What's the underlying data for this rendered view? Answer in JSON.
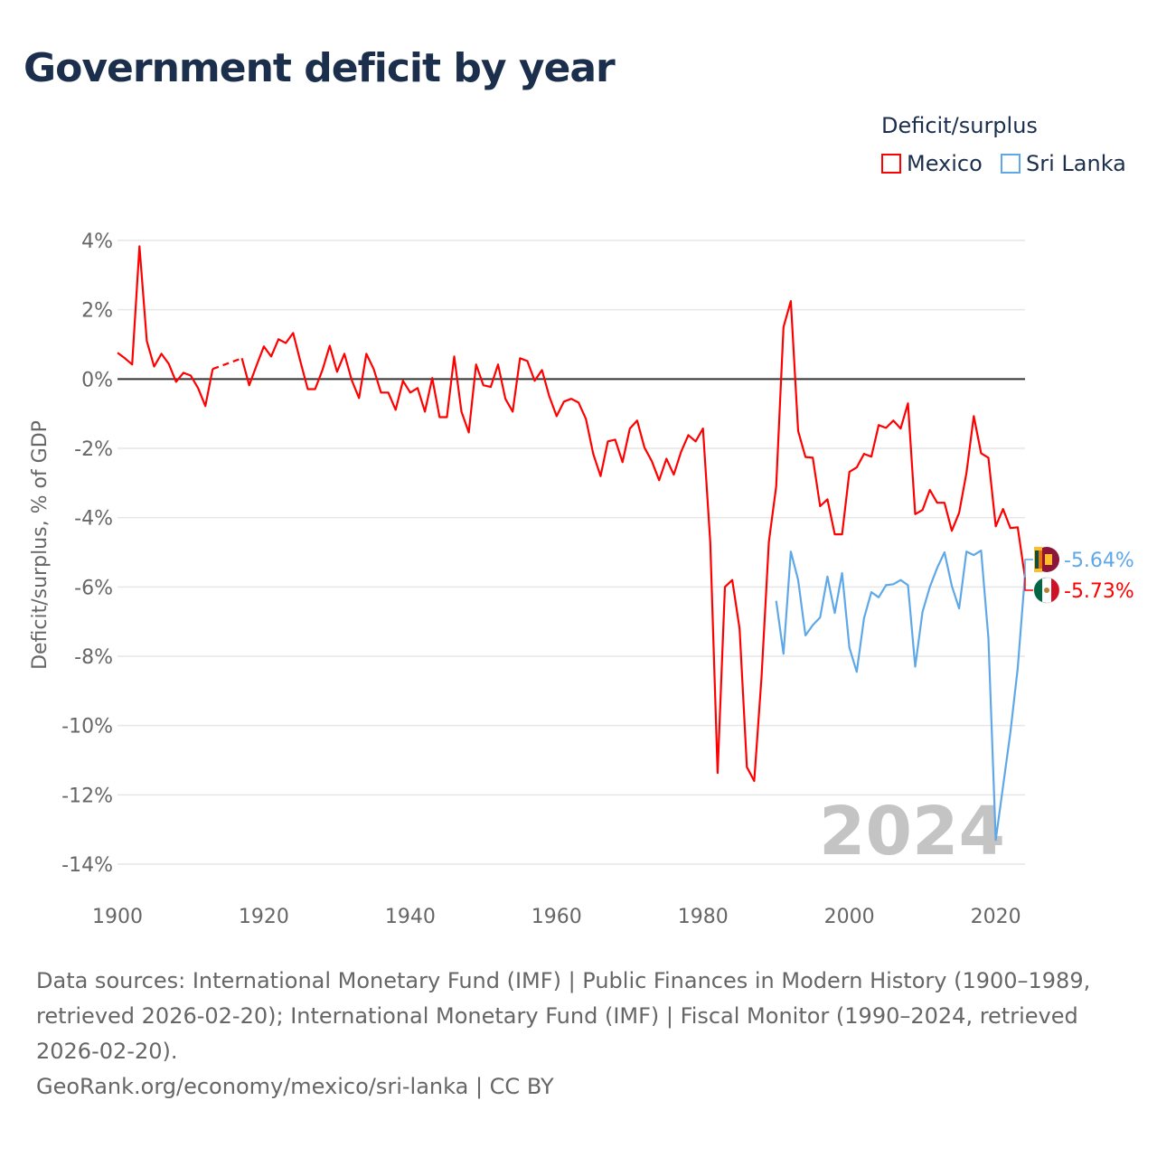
{
  "title": "Government deficit by year",
  "legend": {
    "title": "Deficit/surplus",
    "items": [
      {
        "name": "Mexico",
        "color": "#ff0000"
      },
      {
        "name": "Sri Lanka",
        "color": "#5ea8e8"
      }
    ]
  },
  "watermark_year": "2024",
  "end_labels": {
    "sri_lanka": "-5.64%",
    "mexico": "-5.73%"
  },
  "footer": {
    "sources": "Data sources: International Monetary Fund (IMF) | Public Finances in Modern History (1900–1989, retrieved 2026-02-20); International Monetary Fund (IMF) | Fiscal Monitor (1990–2024, retrieved 2026-02-20).",
    "credit": "GeoRank.org/economy/mexico/sri-lanka | CC BY"
  },
  "chart_data": {
    "type": "line",
    "title": "Government deficit by year",
    "xlabel": "",
    "ylabel": "Deficit/surplus, % of GDP",
    "xlim": [
      1900,
      2024
    ],
    "ylim": [
      -14,
      4
    ],
    "yticks": [
      4,
      2,
      0,
      -2,
      -4,
      -6,
      -8,
      -10,
      -12,
      -14
    ],
    "ytick_labels": [
      "4%",
      "2%",
      "0%",
      "-2%",
      "-4%",
      "-6%",
      "-8%",
      "-10%",
      "-12%",
      "-14%"
    ],
    "xticks": [
      1900,
      1920,
      1940,
      1960,
      1980,
      2000,
      2020
    ],
    "xtick_labels": [
      "1900",
      "1920",
      "1940",
      "1960",
      "1980",
      "2000",
      "2020"
    ],
    "grid": true,
    "legend_position": "top-right",
    "series": [
      {
        "name": "Mexico",
        "color": "#ff0000",
        "start": 1900,
        "values": [
          0.76,
          0.6,
          0.42,
          3.83,
          1.1,
          0.36,
          0.73,
          0.44,
          -0.08,
          0.18,
          0.1,
          -0.26,
          -0.78,
          0.29,
          null,
          null,
          null,
          0.6,
          -0.18,
          0.39,
          0.94,
          0.65,
          1.15,
          1.04,
          1.33,
          0.5,
          -0.29,
          -0.29,
          0.26,
          0.96,
          0.21,
          0.73,
          -0.03,
          -0.55,
          0.73,
          0.29,
          -0.39,
          -0.39,
          -0.89,
          -0.05,
          -0.39,
          -0.26,
          -0.94,
          0.03,
          -1.1,
          -1.1,
          0.65,
          -0.94,
          -1.54,
          0.42,
          -0.18,
          -0.23,
          0.42,
          -0.57,
          -0.94,
          0.6,
          0.52,
          -0.05,
          0.26,
          -0.5,
          -1.07,
          -0.65,
          -0.57,
          -0.68,
          -1.15,
          -2.16,
          -2.8,
          -1.8,
          -1.75,
          -2.4,
          -1.43,
          -1.2,
          -1.98,
          -2.37,
          -2.92,
          -2.3,
          -2.76,
          -2.1,
          -1.62,
          -1.8,
          -1.43,
          -4.72,
          -11.37,
          -6.0,
          -5.8,
          -7.2,
          -11.2,
          -11.6,
          -8.6,
          -4.7,
          -3.1,
          1.5,
          2.25,
          -1.5,
          -2.25,
          -2.27,
          -3.67,
          -3.47,
          -4.48,
          -4.48,
          -2.68,
          -2.55,
          -2.16,
          -2.24,
          -1.33,
          -1.41,
          -1.2,
          -1.43,
          -0.7,
          -3.9,
          -3.78,
          -3.2,
          -3.57,
          -3.57,
          -4.38,
          -3.86,
          -2.71,
          -1.07,
          -2.14,
          -2.27,
          -4.25,
          -3.75,
          -4.3,
          -4.28,
          -5.73
        ]
      },
      {
        "name": "Sri Lanka",
        "color": "#5ea8e8",
        "start": 1990,
        "values": [
          -6.4,
          -7.93,
          -4.98,
          -5.8,
          -7.4,
          -7.1,
          -6.88,
          -5.7,
          -6.75,
          -5.6,
          -7.75,
          -8.45,
          -6.9,
          -6.15,
          -6.3,
          -5.95,
          -5.92,
          -5.8,
          -5.95,
          -8.3,
          -6.72,
          -6.0,
          -5.45,
          -5.0,
          -5.97,
          -6.62,
          -4.98,
          -5.08,
          -4.95,
          -7.48,
          -13.3,
          -11.75,
          -10.2,
          -8.35,
          -5.64
        ]
      }
    ]
  }
}
